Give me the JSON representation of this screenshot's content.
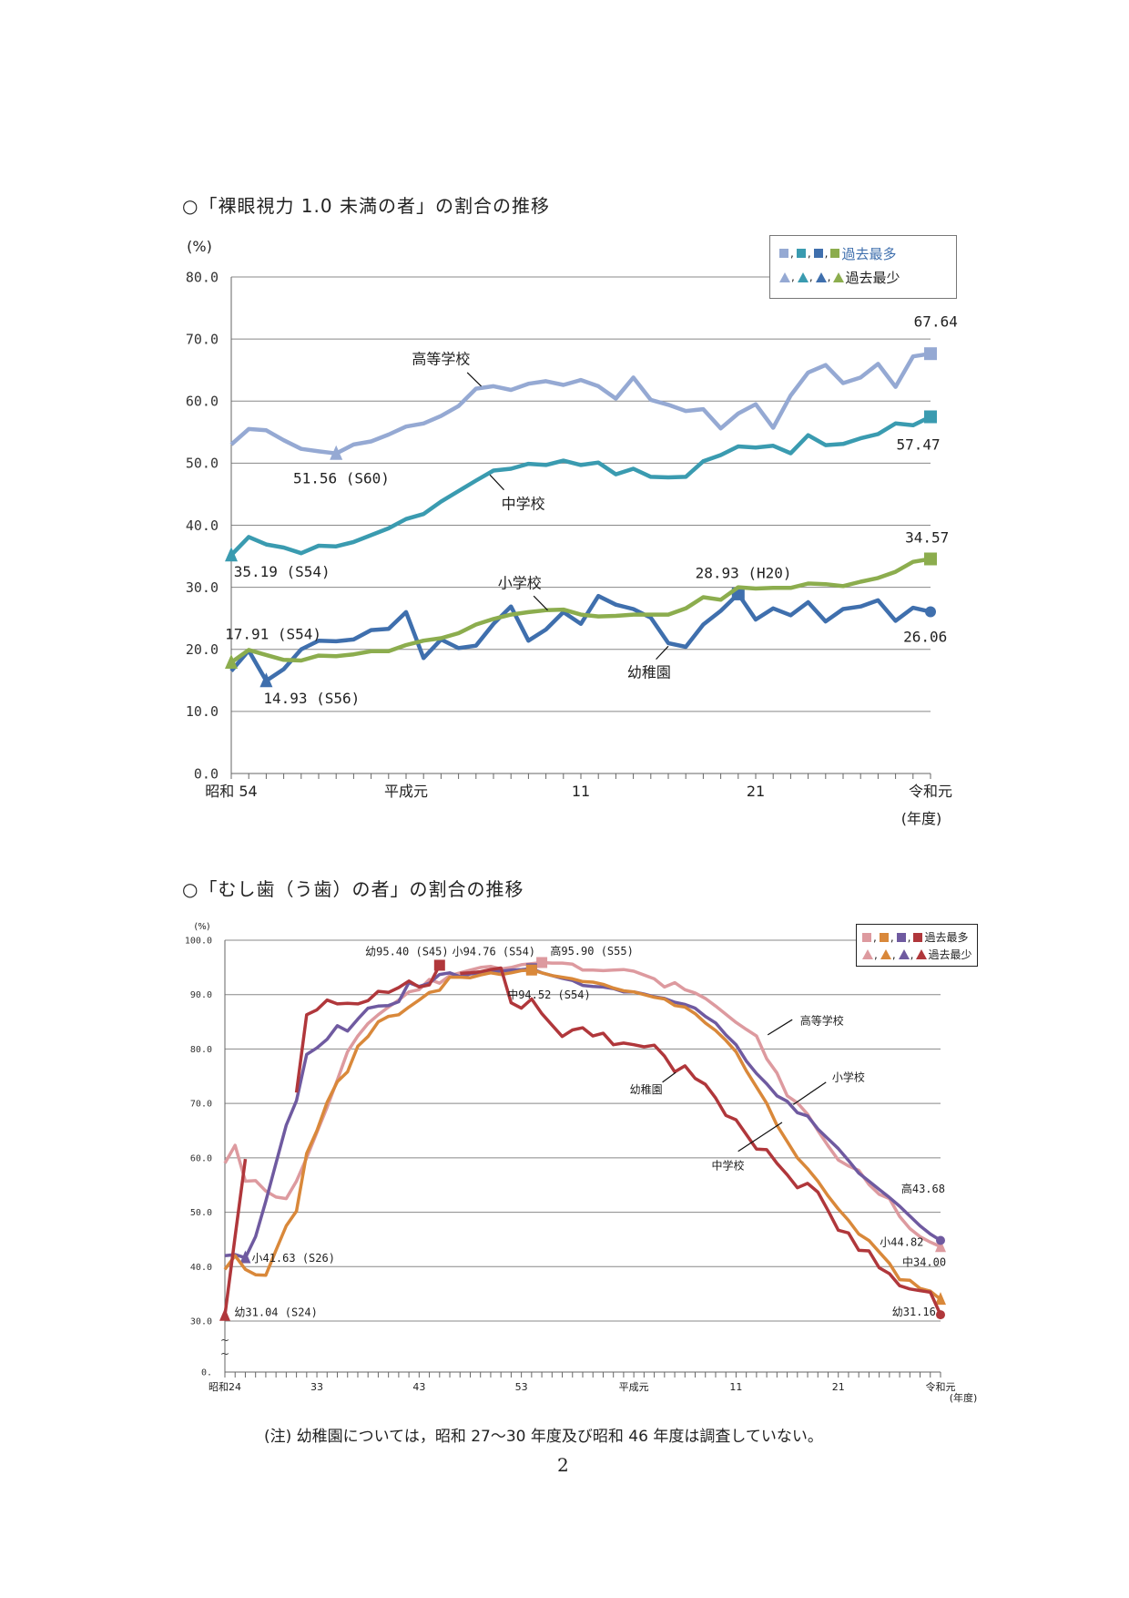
{
  "chart_data": [
    {
      "type": "line",
      "title": "○「裸眼視力 1.0 未満の者」の割合の推移",
      "ylabel": "(%)",
      "xlabel": "(年度)",
      "ylim": [
        0,
        80
      ],
      "yticks": [
        "0.0",
        "10.0",
        "20.0",
        "30.0",
        "40.0",
        "50.0",
        "60.0",
        "70.0",
        "80.0"
      ],
      "ytick_values": [
        0,
        10,
        20,
        30,
        40,
        50,
        60,
        70,
        80
      ],
      "x_count": 41,
      "xtick_labels": [
        {
          "i": 0,
          "label": "昭和 54"
        },
        {
          "i": 10,
          "label": "平成元"
        },
        {
          "i": 20,
          "label": "11"
        },
        {
          "i": 30,
          "label": "21"
        },
        {
          "i": 40,
          "label": "令和元"
        }
      ],
      "grid": true,
      "legend": {
        "placement": "top-right",
        "max_label": "過去最多",
        "min_label": "過去最少"
      },
      "series": [
        {
          "name": "高等学校",
          "color": "#95a9d3",
          "values": [
            53.0,
            55.5,
            55.3,
            53.7,
            52.3,
            51.9,
            51.56,
            53.0,
            53.5,
            54.6,
            55.9,
            56.4,
            57.6,
            59.2,
            62.0,
            62.4,
            61.8,
            62.8,
            63.2,
            62.6,
            63.4,
            62.4,
            60.4,
            63.8,
            60.2,
            59.4,
            58.4,
            58.7,
            55.6,
            58.0,
            59.5,
            55.7,
            60.9,
            64.6,
            65.8,
            62.9,
            63.8,
            66.0,
            62.3,
            67.2,
            67.64
          ],
          "max_i": 40,
          "min_i": 6
        },
        {
          "name": "中学校",
          "color": "#3a9bb0",
          "values": [
            35.19,
            38.1,
            36.9,
            36.4,
            35.5,
            36.7,
            36.6,
            37.3,
            38.4,
            39.5,
            41.0,
            41.8,
            43.8,
            45.5,
            47.2,
            48.8,
            49.1,
            49.9,
            49.7,
            50.4,
            49.7,
            50.1,
            48.2,
            49.1,
            47.8,
            47.7,
            47.8,
            50.3,
            51.3,
            52.7,
            52.5,
            52.8,
            51.6,
            54.5,
            52.9,
            53.1,
            54.0,
            54.7,
            56.4,
            56.1,
            57.47
          ],
          "max_i": 40,
          "min_i": 0
        },
        {
          "name": "小学校",
          "color": "#3f6fad",
          "values": [
            16.5,
            19.8,
            14.93,
            16.8,
            20.0,
            21.4,
            21.3,
            21.6,
            23.1,
            23.3,
            26.0,
            18.6,
            21.6,
            20.2,
            20.6,
            24.1,
            26.9,
            21.4,
            23.2,
            26.0,
            24.1,
            28.6,
            27.2,
            26.5,
            25.1,
            21.0,
            20.4,
            24.0,
            26.2,
            28.93,
            24.8,
            26.6,
            25.5,
            27.6,
            24.5,
            26.5,
            26.9,
            27.9,
            24.6,
            26.7,
            26.06
          ],
          "max_i": 29,
          "min_i": 2,
          "end_dot": true
        },
        {
          "name": "幼稚園",
          "color": "#8cad4e",
          "values": [
            17.91,
            19.9,
            19.1,
            18.3,
            18.2,
            19.0,
            18.9,
            19.2,
            19.7,
            19.7,
            20.7,
            21.4,
            21.8,
            22.6,
            24.0,
            24.9,
            25.6,
            26.0,
            26.3,
            26.4,
            25.6,
            25.3,
            25.4,
            25.6,
            25.6,
            25.6,
            26.6,
            28.4,
            28.0,
            30.0,
            29.8,
            29.9,
            29.9,
            30.6,
            30.5,
            30.2,
            30.9,
            31.5,
            32.5,
            34.1,
            34.57
          ],
          "max_i": 40,
          "min_i": 0
        }
      ],
      "annotations": [
        {
          "text": "高等学校",
          "x": 12,
          "y": 66.8,
          "leader": [
            13.5,
            64.6,
            14.3,
            62.4
          ]
        },
        {
          "text": "51.56 (S60)",
          "x": 6.3,
          "y": 47.6
        },
        {
          "text": "中学校",
          "x": 16.7,
          "y": 43.5,
          "leader": [
            14.8,
            48.1,
            15.6,
            45.7
          ]
        },
        {
          "text": "35.19 (S54)",
          "x": 2.9,
          "y": 32.5
        },
        {
          "text": "17.91 (S54)",
          "x": 2.4,
          "y": 22.5
        },
        {
          "text": "14.93 (S56)",
          "x": 4.6,
          "y": 12.1
        },
        {
          "text": "小学校",
          "x": 16.5,
          "y": 30.7,
          "leader": [
            17.3,
            28.6,
            18.1,
            26.3
          ]
        },
        {
          "text": "28.93 (H20)",
          "x": 29.3,
          "y": 32.3
        },
        {
          "text": "幼稚園",
          "x": 23.9,
          "y": 16.3,
          "leader": [
            24.3,
            18.4,
            25.0,
            20.5
          ]
        },
        {
          "text": "67.64",
          "x": 40.3,
          "y": 72.8
        },
        {
          "text": "57.47",
          "x": 39.3,
          "y": 53.0
        },
        {
          "text": "34.57",
          "x": 39.8,
          "y": 38.0
        },
        {
          "text": "26.06",
          "x": 39.7,
          "y": 22.0
        }
      ]
    },
    {
      "type": "line",
      "title": "○「むし歯（う歯）の者」の割合の推移",
      "ylabel": "(%)",
      "xlabel": "(年度)",
      "ylim": [
        0,
        100
      ],
      "axis_break": [
        0,
        30
      ],
      "yticks": [
        "0.",
        "30.0",
        "40.0",
        "50.0",
        "60.0",
        "70.0",
        "80.0",
        "90.0",
        "100.0"
      ],
      "ytick_values": [
        0,
        30,
        40,
        50,
        60,
        70,
        80,
        90,
        100
      ],
      "x_count": 71,
      "xtick_labels": [
        {
          "i": 0,
          "label": "昭和24"
        },
        {
          "i": 9,
          "label": "33"
        },
        {
          "i": 19,
          "label": "43"
        },
        {
          "i": 29,
          "label": "53"
        },
        {
          "i": 40,
          "label": "平成元"
        },
        {
          "i": 50,
          "label": "11"
        },
        {
          "i": 60,
          "label": "21"
        },
        {
          "i": 70,
          "label": "令和元"
        }
      ],
      "grid": true,
      "legend": {
        "placement": "top-right",
        "max_label": "過去最多",
        "min_label": "過去最少"
      },
      "series": [
        {
          "name": "高等学校",
          "color": "#dd9a9f",
          "values": [
            59.0,
            62.3,
            55.7,
            55.8,
            53.9,
            52.8,
            52.5,
            55.7,
            60.0,
            64.7,
            69.3,
            74.3,
            79.5,
            82.4,
            84.7,
            86.3,
            87.7,
            89.0,
            90.5,
            90.9,
            92.8,
            92.1,
            93.5,
            94.0,
            94.5,
            95.0,
            95.2,
            94.7,
            95.0,
            95.5,
            95.7,
            95.9,
            95.8,
            95.8,
            95.6,
            94.5,
            94.5,
            94.4,
            94.5,
            94.6,
            94.3,
            93.6,
            92.9,
            91.4,
            92.2,
            90.9,
            90.3,
            89.3,
            87.9,
            86.4,
            84.9,
            83.6,
            82.4,
            78.2,
            75.6,
            71.4,
            70.1,
            68.0,
            65.0,
            62.2,
            59.6,
            58.5,
            57.7,
            55.1,
            53.3,
            52.5,
            49.2,
            47.0,
            45.5,
            44.5,
            43.68
          ],
          "max_i": 31,
          "min_i": 70
        },
        {
          "name": "小学校",
          "color": "#6f5aa0",
          "values": [
            42.0,
            42.2,
            41.63,
            45.5,
            52.0,
            59.0,
            66.0,
            70.5,
            79.0,
            80.2,
            81.8,
            84.3,
            83.3,
            85.5,
            87.5,
            87.9,
            88.0,
            88.7,
            92.2,
            91.5,
            92.1,
            93.7,
            94.0,
            93.3,
            93.8,
            94.0,
            94.4,
            94.3,
            94.5,
            94.6,
            94.76,
            94.0,
            93.5,
            93.0,
            92.6,
            91.7,
            91.5,
            91.4,
            91.1,
            90.5,
            90.5,
            90.1,
            89.6,
            89.3,
            88.6,
            88.2,
            87.5,
            86.0,
            84.8,
            82.6,
            80.8,
            77.8,
            75.5,
            73.6,
            71.4,
            70.4,
            68.3,
            67.7,
            65.3,
            63.5,
            61.7,
            59.5,
            57.2,
            55.7,
            54.2,
            52.7,
            51.1,
            49.3,
            47.5,
            46.0,
            44.82
          ],
          "max_i": 30,
          "min_i": 2,
          "end_dot": true
        },
        {
          "name": "中学校",
          "color": "#d9883a",
          "values": [
            39.5,
            42.0,
            39.5,
            38.5,
            38.4,
            43.0,
            47.5,
            50.2,
            60.8,
            65.0,
            70.2,
            74.0,
            75.8,
            80.5,
            82.3,
            85.0,
            86.0,
            86.3,
            87.7,
            89.0,
            90.4,
            90.8,
            93.2,
            93.2,
            93.1,
            93.6,
            94.0,
            93.7,
            94.0,
            94.4,
            94.52,
            94.0,
            93.5,
            93.2,
            92.9,
            92.4,
            92.3,
            91.9,
            91.2,
            90.7,
            90.5,
            90.0,
            89.5,
            89.2,
            88.0,
            87.7,
            86.5,
            84.8,
            83.4,
            81.6,
            79.5,
            76.0,
            73.0,
            70.0,
            66.0,
            63.0,
            60.0,
            58.0,
            55.7,
            53.0,
            50.6,
            48.5,
            46.0,
            44.8,
            42.7,
            40.6,
            37.6,
            37.5,
            36.0,
            35.5,
            34.0
          ],
          "max_i": 30,
          "min_i": 70
        },
        {
          "name": "幼稚園",
          "color": "#b0373b",
          "values": [
            31.04,
            45.5,
            59.8,
            null,
            null,
            null,
            null,
            72.0,
            86.3,
            87.2,
            89.0,
            88.3,
            88.4,
            88.3,
            88.9,
            90.6,
            90.4,
            91.3,
            92.5,
            91.4,
            91.8,
            95.4,
            null,
            93.9,
            94.0,
            94.2,
            94.6,
            94.9,
            88.5,
            87.5,
            89.2,
            86.5,
            84.4,
            82.3,
            83.5,
            83.9,
            82.4,
            82.9,
            80.8,
            81.1,
            80.8,
            80.4,
            80.7,
            78.7,
            75.8,
            76.9,
            74.6,
            73.5,
            71.0,
            67.8,
            67.0,
            64.3,
            61.6,
            61.5,
            59.0,
            56.9,
            54.5,
            55.3,
            53.7,
            50.3,
            46.7,
            46.2,
            43.0,
            42.9,
            39.8,
            38.7,
            36.5,
            35.9,
            35.6,
            35.3,
            31.16
          ],
          "max_i": 21,
          "min_i": 0,
          "end_dot": true
        }
      ],
      "annotations": [
        {
          "text": "幼95.40 (S45)",
          "x": 17.8,
          "y": 97.9
        },
        {
          "text": "小94.76 (S54)",
          "x": 26.3,
          "y": 97.9
        },
        {
          "text": "高95.90 (S55)",
          "x": 35.9,
          "y": 98.0
        },
        {
          "text": "中94.52 (S54)",
          "x": 31.7,
          "y": 90.0
        },
        {
          "text": "高等学校",
          "x": 58.4,
          "y": 85.2,
          "leader": [
            55.5,
            85.4,
            53.1,
            82.6
          ]
        },
        {
          "text": "小学校",
          "x": 61.0,
          "y": 74.8,
          "leader": [
            58.8,
            73.9,
            55.6,
            69.8
          ]
        },
        {
          "text": "幼稚園",
          "x": 41.2,
          "y": 72.6,
          "leader": [
            42.8,
            73.9,
            44.1,
            75.7
          ]
        },
        {
          "text": "中学校",
          "x": 49.2,
          "y": 58.6,
          "leader": [
            50.2,
            61.2,
            54.5,
            66.5
          ]
        },
        {
          "text": "高43.68",
          "x": 68.3,
          "y": 54.3
        },
        {
          "text": "小44.82",
          "x": 66.2,
          "y": 44.5
        },
        {
          "text": "中34.00",
          "x": 68.4,
          "y": 40.8
        },
        {
          "text": "幼31.16",
          "x": 67.4,
          "y": 31.7
        },
        {
          "text": "小41.63 (S26)",
          "x": 6.7,
          "y": 41.6
        },
        {
          "text": "幼31.04 (S24)",
          "x": 5.0,
          "y": 31.6
        }
      ]
    }
  ],
  "note": "(注) 幼稚園については，昭和 27～30 年度及び昭和 46 年度は調査していない。",
  "page_number": "2",
  "legend_separator": ","
}
